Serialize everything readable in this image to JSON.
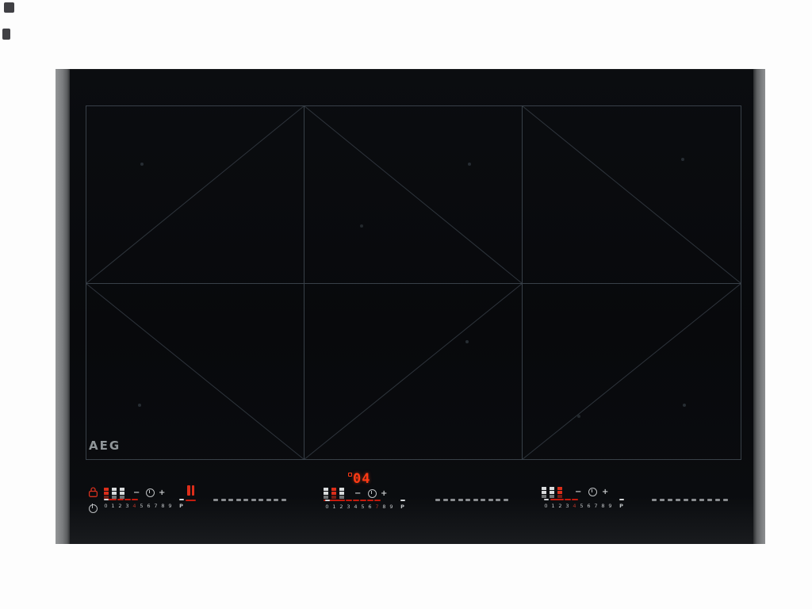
{
  "page": {
    "background": "#fdfdfd"
  },
  "brand": {
    "logo": "AEG"
  },
  "hob": {
    "surface_color": "#090b0e",
    "grid_line_color": "#384048",
    "trim_color": "#7c7e80",
    "accent_red": "#dc2e1a",
    "display_red": "#ff3a14",
    "digit_color": "#c2c5c7",
    "logo_color": "#8f9598"
  },
  "panels": [
    {
      "id": "left",
      "icons": {
        "lock": "lock-icon",
        "minus": "−",
        "timer": "timer-icon",
        "plus": "+",
        "pause": "pause-icon",
        "power": "power-icon"
      },
      "levels": [
        "0",
        "1",
        "2",
        "3",
        "4",
        "5",
        "6",
        "7",
        "8",
        "9",
        "P"
      ],
      "selected_level": 4,
      "zone_grid": {
        "columns": 3,
        "rows": 3,
        "active_column": 0
      }
    },
    {
      "id": "center",
      "display": {
        "degree_mark": "°",
        "value": "04"
      },
      "icons": {
        "minus": "−",
        "timer": "timer-icon",
        "plus": "+"
      },
      "levels": [
        "0",
        "1",
        "2",
        "3",
        "4",
        "5",
        "6",
        "7",
        "8",
        "9",
        "P"
      ],
      "selected_level": 7,
      "zone_grid": {
        "columns": 3,
        "rows": 3,
        "active_column": 1
      }
    },
    {
      "id": "right",
      "icons": {
        "minus": "−",
        "timer": "timer-icon",
        "plus": "+"
      },
      "levels": [
        "0",
        "1",
        "2",
        "3",
        "4",
        "5",
        "6",
        "7",
        "8",
        "9",
        "P"
      ],
      "selected_level": 4,
      "zone_grid": {
        "columns": 3,
        "rows": 3,
        "active_column": 2
      }
    }
  ],
  "separators": {
    "dash_count": 10
  }
}
